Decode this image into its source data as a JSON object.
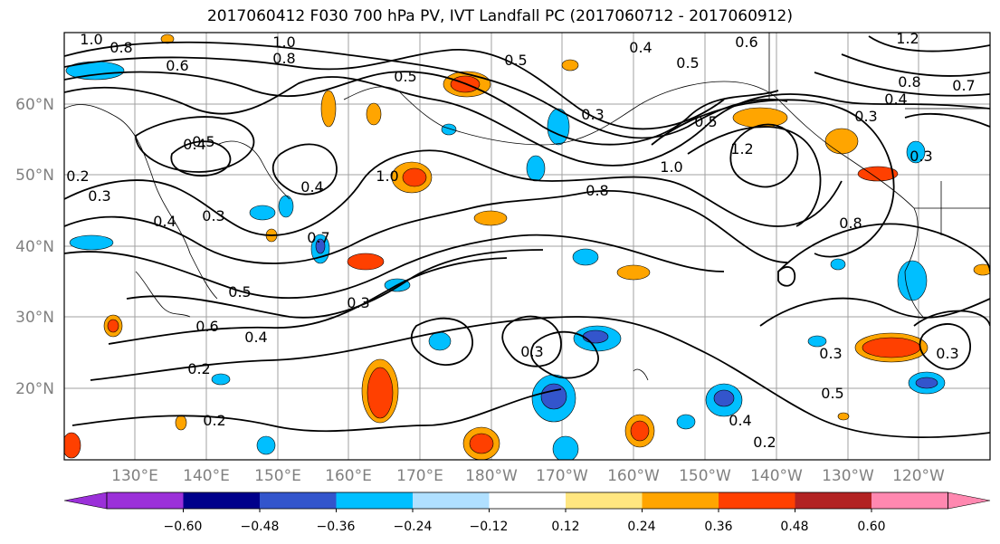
{
  "title": "2017060412 F030 700 hPa PV, IVT Landfall PC (2017060712 - 2017060912)",
  "lat_labels": [
    "60°N",
    "50°N",
    "40°N",
    "30°N",
    "20°N"
  ],
  "lon_labels": [
    "130°E",
    "140°E",
    "150°E",
    "160°E",
    "170°E",
    "180°W",
    "170°W",
    "160°W",
    "150°W",
    "140°W",
    "130°W",
    "120°W"
  ],
  "colorbar": {
    "ticks": [
      "−0.60",
      "−0.48",
      "−0.36",
      "−0.24",
      "−0.12",
      "0.12",
      "0.24",
      "0.36",
      "0.48",
      "0.60"
    ],
    "colors": [
      "#9b30d9",
      "#00008b",
      "#3355cc",
      "#00bfff",
      "#b0e0ff",
      "#ffffff",
      "#ffe680",
      "#ffa500",
      "#ff4000",
      "#b22222",
      "#ff88b0",
      "#ff88b0"
    ]
  },
  "contour_labels": [
    "1.0",
    "0.8",
    "0.6",
    "1.0",
    "0.8",
    "0.5",
    "0.5",
    "0.4",
    "0.3",
    "0.5",
    "0.6",
    "1.2",
    "0.8",
    "0.4",
    "0.3",
    "0.7",
    "0.4",
    "0.5",
    "0.2",
    "0.3",
    "0.4",
    "0.3",
    "0.4",
    "1.0",
    "0.7",
    "0.8",
    "1.0",
    "1.2",
    "0.5",
    "0.3",
    "0.8",
    "0.5",
    "0.6",
    "0.4",
    "0.3",
    "0.2",
    "0.2",
    "0.3",
    "0.3",
    "0.5",
    "0.4",
    "0.2",
    "0.3"
  ]
}
